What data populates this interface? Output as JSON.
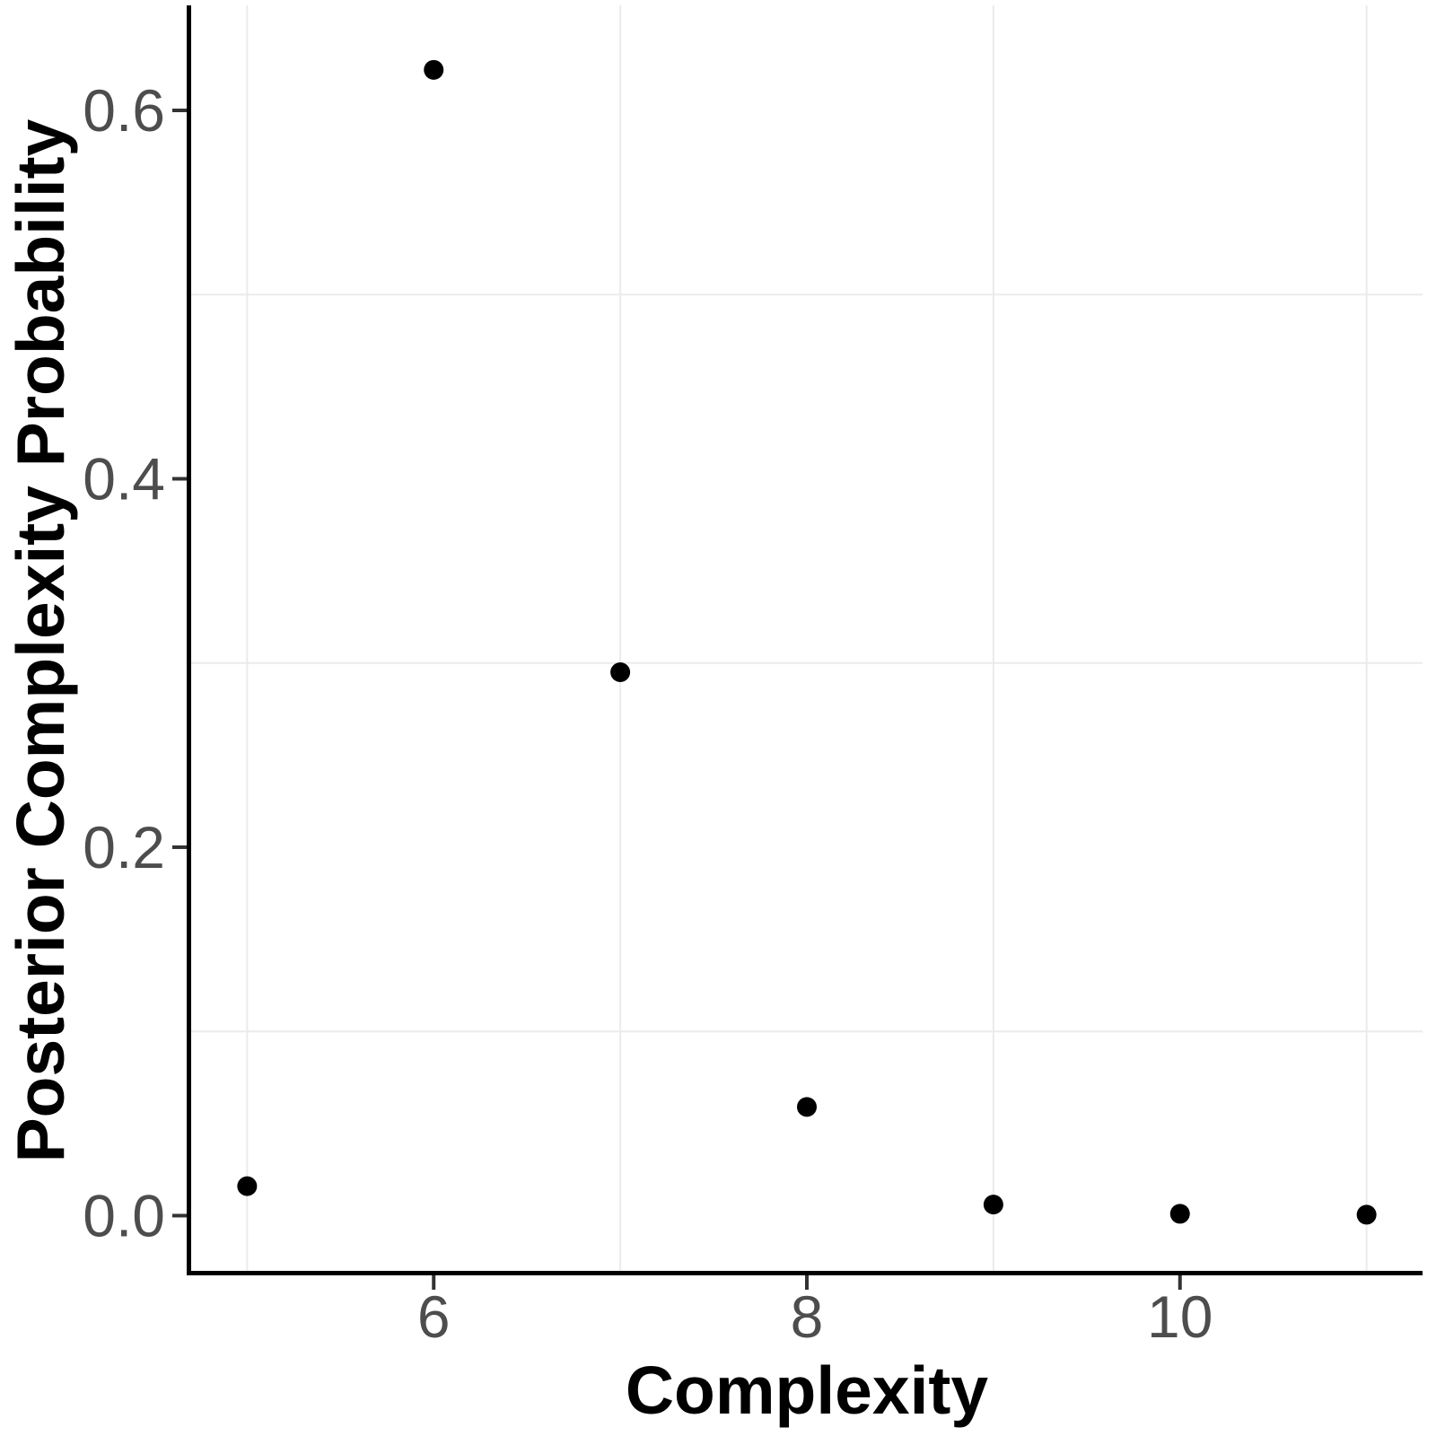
{
  "figure": {
    "background": "#FFFFFF"
  },
  "chart_data": {
    "type": "scatter",
    "title": "",
    "xlabel": "Complexity",
    "ylabel": "Posterior Complexity Probability",
    "x": [
      5,
      6,
      7,
      8,
      9,
      10,
      11
    ],
    "y": [
      0.016,
      0.622,
      0.295,
      0.059,
      0.006,
      0.001,
      0.0005
    ],
    "xlim": [
      4.7,
      11.3
    ],
    "ylim": [
      -0.0312,
      0.657
    ],
    "x_ticks": {
      "values": [
        6,
        8,
        10
      ],
      "labels": [
        "6",
        "8",
        "10"
      ]
    },
    "y_ticks": {
      "values": [
        0.0,
        0.2,
        0.4,
        0.6
      ],
      "labels": [
        "0.0",
        "0.2",
        "0.4",
        "0.6"
      ]
    },
    "x_minor_gridlines": [
      5,
      7,
      9,
      11
    ],
    "y_minor_gridlines": [
      0.1,
      0.3,
      0.5
    ],
    "grid": "minor-only",
    "legend": "none",
    "point_color": "#000000",
    "point_radius_px": 11,
    "colors": {
      "axis_line": "#000000",
      "tick_mark": "#333333",
      "tick_label": "#4D4D4D",
      "grid_line": "#EBEBEB",
      "axis_title": "#000000"
    }
  }
}
